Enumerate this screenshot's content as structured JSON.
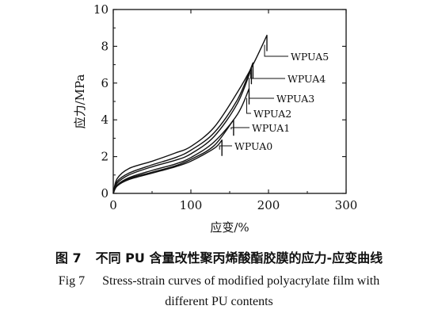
{
  "chart_data": {
    "type": "line",
    "xlabel": "应变/%",
    "ylabel": "应力/MPa",
    "xlim": [
      0,
      300
    ],
    "ylim": [
      0,
      10
    ],
    "xticks": [
      0,
      100,
      200,
      300
    ],
    "yticks": [
      0,
      2,
      4,
      6,
      8,
      10
    ],
    "grid": false,
    "series": [
      {
        "name": "WPUA0",
        "x": [
          0,
          5,
          20,
          50,
          80,
          100,
          130,
          140
        ],
        "y": [
          0,
          0.4,
          0.75,
          1.1,
          1.45,
          1.75,
          2.45,
          2.9
        ]
      },
      {
        "name": "WPUA1",
        "x": [
          0,
          5,
          20,
          50,
          80,
          100,
          130,
          155
        ],
        "y": [
          0,
          0.42,
          0.8,
          1.15,
          1.5,
          1.85,
          2.6,
          4.0
        ]
      },
      {
        "name": "WPUA2",
        "x": [
          0,
          5,
          20,
          50,
          80,
          100,
          130,
          160,
          175
        ],
        "y": [
          0,
          0.45,
          0.85,
          1.25,
          1.6,
          1.95,
          2.8,
          4.3,
          5.7
        ]
      },
      {
        "name": "WPUA3",
        "x": [
          0,
          5,
          20,
          50,
          80,
          100,
          130,
          160,
          178
        ],
        "y": [
          0,
          0.55,
          1.0,
          1.45,
          1.8,
          2.15,
          3.1,
          4.9,
          6.8
        ]
      },
      {
        "name": "WPUA4",
        "x": [
          0,
          5,
          20,
          50,
          80,
          100,
          130,
          160,
          180
        ],
        "y": [
          0,
          0.65,
          1.1,
          1.55,
          1.95,
          2.35,
          3.3,
          5.1,
          7.1
        ]
      },
      {
        "name": "WPUA5",
        "x": [
          0,
          5,
          20,
          50,
          80,
          100,
          130,
          160,
          180,
          198
        ],
        "y": [
          0,
          0.8,
          1.35,
          1.75,
          2.2,
          2.55,
          3.6,
          5.5,
          7.0,
          8.6
        ]
      }
    ]
  },
  "caption": {
    "cn_number": "图 7",
    "cn_text": "不同 PU 含量改性聚丙烯酸酯胶膜的应力-应变曲线",
    "en_number": "Fig 7",
    "en_line1": "Stress-strain curves of modified polyacrylate film with",
    "en_line2": "different PU contents"
  }
}
